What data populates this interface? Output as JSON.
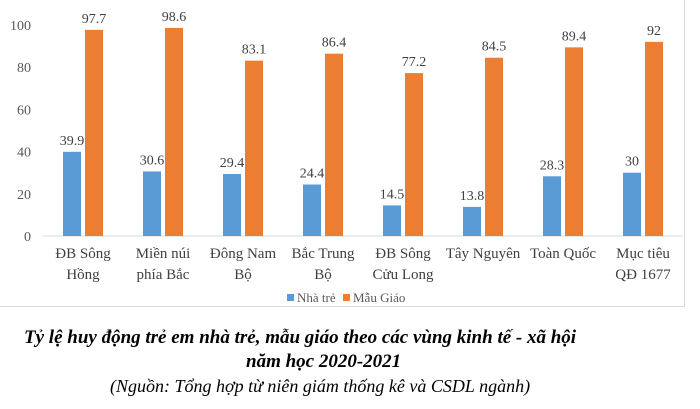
{
  "chart_data": {
    "type": "bar",
    "categories": [
      [
        "ĐB Sông",
        "Hồng"
      ],
      [
        "Miền núi",
        "phía Bắc"
      ],
      [
        "Đông Nam",
        "Bộ"
      ],
      [
        "Bắc Trung",
        "Bộ"
      ],
      [
        "ĐB Sông",
        "Cửu Long"
      ],
      [
        "Tây Nguyên"
      ],
      [
        "Toàn Quốc"
      ],
      [
        "Mục tiêu",
        "QĐ 1677"
      ]
    ],
    "series": [
      {
        "name": "Nhà trẻ",
        "color": "#5b9bd5",
        "values": [
          39.9,
          30.6,
          29.4,
          24.4,
          14.5,
          13.8,
          28.3,
          30
        ]
      },
      {
        "name": "Mẫu Giáo",
        "color": "#ed7d31",
        "values": [
          97.7,
          98.6,
          83.1,
          86.4,
          77.2,
          84.5,
          89.4,
          92
        ]
      }
    ],
    "ylim": [
      0,
      100
    ],
    "yticks": [
      0,
      20,
      40,
      60,
      80,
      100
    ],
    "grid": false,
    "legend": "bottom",
    "title": "",
    "xlabel": "",
    "ylabel": ""
  },
  "caption": {
    "line1": "Tỷ lệ huy động trẻ em nhà trẻ, mẫu giáo theo các vùng kinh tế - xã hội",
    "line2": "năm học 2020-2021",
    "source": "(Nguồn: Tổng hợp từ niên giám thống kê và CSDL ngành)"
  }
}
